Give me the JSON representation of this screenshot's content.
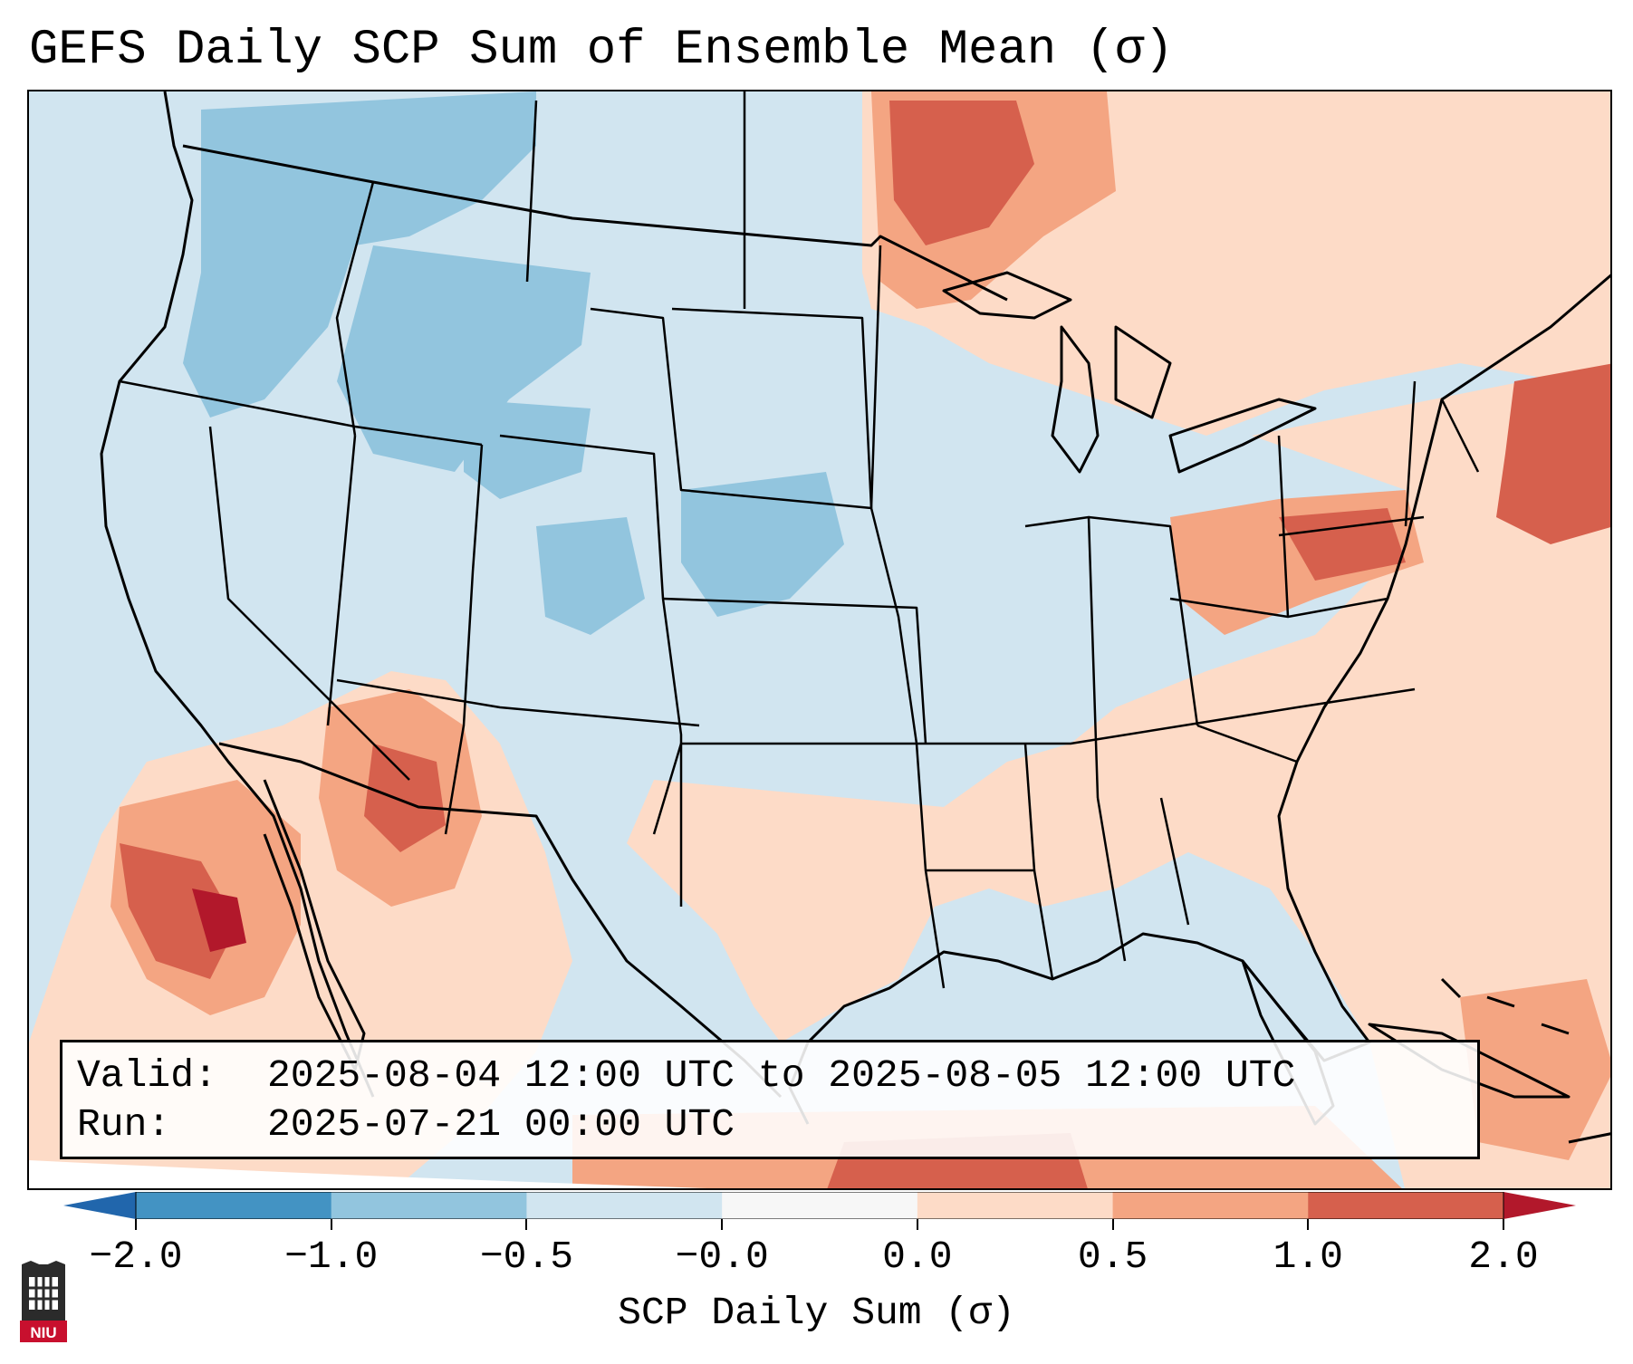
{
  "title": "GEFS Daily SCP Sum of Ensemble Mean (σ)",
  "info": {
    "valid_label": "Valid:",
    "valid_value": "2025-08-04 12:00 UTC to 2025-08-05 12:00 UTC",
    "run_label": "Run:",
    "run_value": "2025-07-21 00:00 UTC"
  },
  "colorbar": {
    "title": "SCP Daily Sum (σ)",
    "ticks": [
      "−2.0",
      "−1.0",
      "−0.5",
      "−0.0",
      "0.0",
      "0.5",
      "1.0",
      "2.0"
    ],
    "colors": [
      "#4393c3",
      "#92c5de",
      "#d1e5f0",
      "#f7f7f7",
      "#fddbc7",
      "#f4a582",
      "#d6604d"
    ],
    "extend_low_color": "#2166ac",
    "extend_high_color": "#b2182b"
  },
  "palette": {
    "ocean_neutral": "#d1e5f0",
    "light_red": "#fddbc7",
    "mid_red": "#f4a582",
    "strong_red": "#d6604d",
    "max_red": "#b2182b",
    "light_blue": "#92c5de",
    "border": "#000000"
  },
  "logo": {
    "text": "NIU",
    "icon": "niu-logo-icon"
  }
}
